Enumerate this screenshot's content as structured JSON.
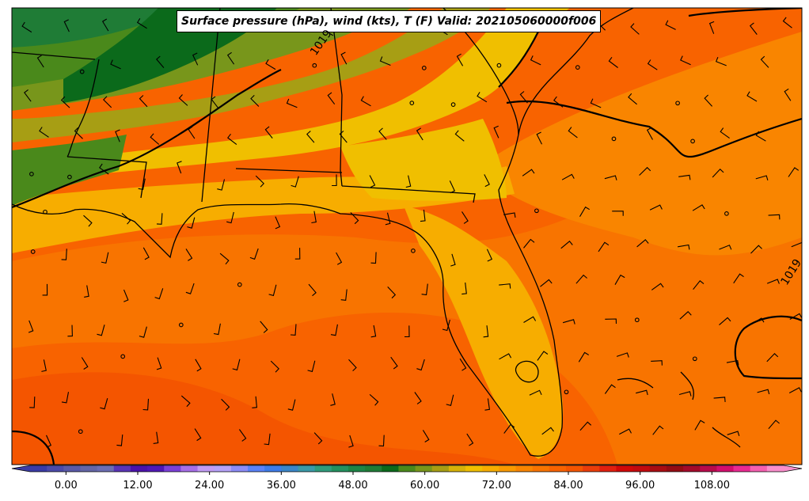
{
  "title": "Surface pressure (hPa), wind (kts), T (F) Valid: 202105060000f006",
  "contour_labels": [
    "1019",
    "1019"
  ],
  "colorbar": {
    "min": -6,
    "max": 120,
    "step": 3,
    "tick_labels": [
      "0.00",
      "12.00",
      "24.00",
      "36.00",
      "48.00",
      "60.00",
      "72.00",
      "84.00",
      "96.00",
      "108.00"
    ],
    "tick_values": [
      0,
      12,
      24,
      36,
      48,
      60,
      72,
      84,
      96,
      108
    ],
    "colors": [
      "#3a3ba5",
      "#4b4aa9",
      "#5a5aa8",
      "#6466a6",
      "#6c6eb3",
      "#5a34b5",
      "#4b12aa",
      "#5018b5",
      "#7c40d8",
      "#a76fe8",
      "#c29cf5",
      "#b6a3fa",
      "#8d8cf8",
      "#5a82f8",
      "#3d7ce8",
      "#3a86c8",
      "#3a9aa8",
      "#2f9c7c",
      "#23915f",
      "#1d8546",
      "#1f7c36",
      "#0b6a1b",
      "#4a891b",
      "#78961b",
      "#a79e14",
      "#d6b209",
      "#f0bf00",
      "#f7ad00",
      "#f99a00",
      "#f98500",
      "#f87400",
      "#f86300",
      "#f45500",
      "#ea3d0a",
      "#e01f0f",
      "#d00808",
      "#c20a0e",
      "#a90d12",
      "#940c13",
      "#a40a2a",
      "#b80b4b",
      "#d30e6e",
      "#ea2a92",
      "#f560b0",
      "#fa8fcc"
    ]
  },
  "map_colors": {
    "temp_50": "#0b6a1b",
    "temp_55": "#1f7c36",
    "temp_60": "#4a891b",
    "temp_62": "#78961b",
    "temp_65": "#a79e14",
    "temp_68": "#f0bf00",
    "temp_72": "#f7ad00",
    "temp_75": "#f98500",
    "temp_78": "#f87400",
    "temp_80": "#f45500"
  }
}
